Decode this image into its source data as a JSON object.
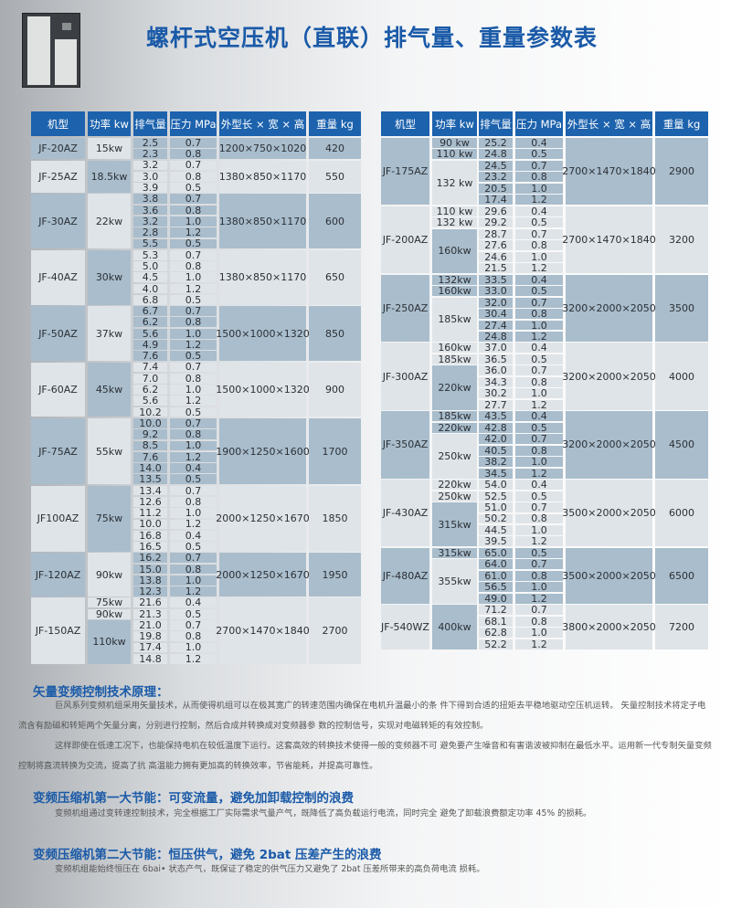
{
  "title": "螺杆式空压机（直联）排气量、重量参数表",
  "headers": [
    "机型",
    "功率 kw",
    "排气量",
    "压力 MPa",
    "外型长 × 宽 × 高",
    "重量 kg"
  ],
  "tables": [
    [
      {
        "model": "JF-20AZ",
        "dims": "1200×750×1020",
        "weight": "420",
        "powers": [
          [
            "15kw",
            2
          ]
        ],
        "rows": [
          [
            "2.5",
            "0.7"
          ],
          [
            "2.3",
            "0.8"
          ]
        ]
      },
      {
        "model": "JF-25AZ",
        "dims": "1380×850×1170",
        "weight": "550",
        "powers": [
          [
            "18.5kw",
            3
          ]
        ],
        "rows": [
          [
            "3.2",
            "0.7"
          ],
          [
            "3.0",
            "0.8"
          ],
          [
            "3.9",
            "0.5"
          ]
        ]
      },
      {
        "model": "JF-30AZ",
        "dims": "1380×850×1170",
        "weight": "600",
        "powers": [
          [
            "22kw",
            5
          ]
        ],
        "rows": [
          [
            "3.8",
            "0.7"
          ],
          [
            "3.6",
            "0.8"
          ],
          [
            "3.2",
            "1.0"
          ],
          [
            "2.8",
            "1.2"
          ],
          [
            "5.5",
            "0.5"
          ]
        ]
      },
      {
        "model": "JF-40AZ",
        "dims": "1380×850×1170",
        "weight": "650",
        "powers": [
          [
            "30kw",
            5
          ]
        ],
        "rows": [
          [
            "5.3",
            "0.7"
          ],
          [
            "5.0",
            "0.8"
          ],
          [
            "4.5",
            "1.0"
          ],
          [
            "4.0",
            "1.2"
          ],
          [
            "6.8",
            "0.5"
          ]
        ]
      },
      {
        "model": "JF-50AZ",
        "dims": "1500×1000×1320",
        "weight": "850",
        "powers": [
          [
            "37kw",
            5
          ]
        ],
        "rows": [
          [
            "6.7",
            "0.7"
          ],
          [
            "6.2",
            "0.8"
          ],
          [
            "5.6",
            "1.0"
          ],
          [
            "4.9",
            "1.2"
          ],
          [
            "7.6",
            "0.5"
          ]
        ]
      },
      {
        "model": "JF-60AZ",
        "dims": "1500×1000×1320",
        "weight": "900",
        "powers": [
          [
            "45kw",
            5
          ]
        ],
        "rows": [
          [
            "7.4",
            "0.7"
          ],
          [
            "7.0",
            "0.8"
          ],
          [
            "6.2",
            "1.0"
          ],
          [
            "5.6",
            "1.2"
          ],
          [
            "10.2",
            "0.5"
          ]
        ]
      },
      {
        "model": "JF-75AZ",
        "dims": "1900×1250×1600",
        "weight": "1700",
        "powers": [
          [
            "55kw",
            6
          ]
        ],
        "rows": [
          [
            "10.0",
            "0.7"
          ],
          [
            "9.2",
            "0.8"
          ],
          [
            "8.5",
            "1.0"
          ],
          [
            "7.6",
            "1.2"
          ],
          [
            "14.0",
            "0.4"
          ],
          [
            "13.5",
            "0.5"
          ]
        ]
      },
      {
        "model": "JF100AZ",
        "dims": "2000×1250×1670",
        "weight": "1850",
        "powers": [
          [
            "75kw",
            6
          ]
        ],
        "rows": [
          [
            "13.4",
            "0.7"
          ],
          [
            "12.6",
            "0.8"
          ],
          [
            "11.2",
            "1.0"
          ],
          [
            "10.0",
            "1.2"
          ],
          [
            "16.8",
            "0.4"
          ],
          [
            "16.5",
            "0.5"
          ]
        ]
      },
      {
        "model": "JF-120AZ",
        "dims": "2000×1250×1670",
        "weight": "1950",
        "powers": [
          [
            "90kw",
            4
          ]
        ],
        "rows": [
          [
            "16.2",
            "0.7"
          ],
          [
            "15.0",
            "0.8"
          ],
          [
            "13.8",
            "1.0"
          ],
          [
            "12.3",
            "1.2"
          ]
        ]
      },
      {
        "model": "JF-150AZ",
        "dims": "2700×1470×1840",
        "weight": "2700",
        "powers": [
          [
            "75kw",
            1
          ],
          [
            "90kw",
            1
          ],
          [
            "110kw",
            4
          ]
        ],
        "rows": [
          [
            "21.6",
            "0.4"
          ],
          [
            "21.3",
            "0.5"
          ],
          [
            "21.0",
            "0.7"
          ],
          [
            "19.8",
            "0.8"
          ],
          [
            "17.4",
            "1.0"
          ],
          [
            "14.8",
            "1.2"
          ]
        ]
      }
    ],
    [
      {
        "model": "JF-175AZ",
        "dims": "2700×1470×1840",
        "weight": "2900",
        "powers": [
          [
            "90 kw",
            1
          ],
          [
            "110 kw",
            1
          ],
          [
            "132 kw",
            4
          ]
        ],
        "rows": [
          [
            "25.2",
            "0.4"
          ],
          [
            "24.8",
            "0.5"
          ],
          [
            "24.5",
            "0.7"
          ],
          [
            "23.2",
            "0.8"
          ],
          [
            "20.5",
            "1.0"
          ],
          [
            "17.4",
            "1.2"
          ]
        ]
      },
      {
        "model": "JF-200AZ",
        "dims": "2700×1470×1840",
        "weight": "3200",
        "powers": [
          [
            "110 kw",
            1
          ],
          [
            "132 kw",
            1
          ],
          [
            "160kw",
            4
          ]
        ],
        "rows": [
          [
            "29.6",
            "0.4"
          ],
          [
            "29.2",
            "0.5"
          ],
          [
            "28.7",
            "0.7"
          ],
          [
            "27.6",
            "0.8"
          ],
          [
            "24.6",
            "1.0"
          ],
          [
            "21.5",
            "1.2"
          ]
        ]
      },
      {
        "model": "JF-250AZ",
        "dims": "3200×2000×2050",
        "weight": "3500",
        "powers": [
          [
            "132kw",
            1
          ],
          [
            "160kw",
            1
          ],
          [
            "185kw",
            4
          ]
        ],
        "rows": [
          [
            "33.5",
            "0.4"
          ],
          [
            "33.0",
            "0.5"
          ],
          [
            "32.0",
            "0.7"
          ],
          [
            "30.4",
            "0.8"
          ],
          [
            "27.4",
            "1.0"
          ],
          [
            "24.8",
            "1.2"
          ]
        ]
      },
      {
        "model": "JF-300AZ",
        "dims": "3200×2000×2050",
        "weight": "4000",
        "powers": [
          [
            "160kw",
            1
          ],
          [
            "185kw",
            1
          ],
          [
            "220kw",
            4
          ]
        ],
        "rows": [
          [
            "37.0",
            "0.4"
          ],
          [
            "36.5",
            "0.5"
          ],
          [
            "36.0",
            "0.7"
          ],
          [
            "34.3",
            "0.8"
          ],
          [
            "30.2",
            "1.0"
          ],
          [
            "27.7",
            "1.2"
          ]
        ]
      },
      {
        "model": "JF-350AZ",
        "dims": "3200×2000×2050",
        "weight": "4500",
        "powers": [
          [
            "185kw",
            1
          ],
          [
            "220kw",
            1
          ],
          [
            "250kw",
            4
          ]
        ],
        "rows": [
          [
            "43.5",
            "0.4"
          ],
          [
            "42.8",
            "0.5"
          ],
          [
            "42.0",
            "0.7"
          ],
          [
            "40.5",
            "0.8"
          ],
          [
            "38.2",
            "1.0"
          ],
          [
            "34.5",
            "1.2"
          ]
        ]
      },
      {
        "model": "JF-430AZ",
        "dims": "3500×2000×2050",
        "weight": "6000",
        "powers": [
          [
            "220kw",
            1
          ],
          [
            "250kw",
            1
          ],
          [
            "315kw",
            4
          ]
        ],
        "rows": [
          [
            "54.0",
            "0.4"
          ],
          [
            "52.5",
            "0.5"
          ],
          [
            "51.0",
            "0.7"
          ],
          [
            "50.2",
            "0.8"
          ],
          [
            "44.5",
            "1.0"
          ],
          [
            "39.5",
            "1.2"
          ]
        ]
      },
      {
        "model": "JF-480AZ",
        "dims": "3500×2000×2050",
        "weight": "6500",
        "powers": [
          [
            "315kw",
            1
          ],
          [
            "355kw",
            4
          ]
        ],
        "rows": [
          [
            "65.0",
            "0.5"
          ],
          [
            "64.0",
            "0.7"
          ],
          [
            "61.0",
            "0.8"
          ],
          [
            "56.5",
            "1.0"
          ],
          [
            "49.0",
            "1.2"
          ]
        ]
      },
      {
        "model": "JF-540WZ",
        "dims": "3800×2000×2050",
        "weight": "7200",
        "powers": [
          [
            "400kw",
            4
          ]
        ],
        "rows": [
          [
            "71.2",
            "0.7"
          ],
          [
            "68.1",
            "0.8"
          ],
          [
            "62.8",
            "1.0"
          ],
          [
            "52.2",
            "1.2"
          ]
        ]
      }
    ]
  ],
  "sections": [
    {
      "heading": "矢量变频控制技术原理：",
      "paras": [
        "巨风系列变频机组采用矢量技术，从而使得机组可以在极其宽广的转速范围内确保在电机升温最小的条 件下得到合适的扭矩去平稳地驱动空压机运转。 矢量控制技术将定子电流含有励磁和转矩两个矢量分离，分别进行控制，然后合成并转换成对变频器参 数的控制信号，实现对电磁转矩的有效控制。",
        "这样即使在低速工况下，也能保持电机在较低温度下运行。这套高效的转换技术使得一般的变频器不可 避免要产生噪音和有害谐波被抑制在最低水平。运用新一代专制矢量变频控制将直流转换为交流，提高了抗 高温能力拥有更加高的转换效率，节省能耗，并提高可靠性。"
      ]
    },
    {
      "heading": "变频压缩机第一大节能：可变流量，避免加卸载控制的浪费",
      "paras": [
        "变频机组通过变转速控制技术，完全根据工厂实际需求气量产气，既降低了高负载运行电流，同时完全 避免了卸载浪费额定功率 45% 的损耗。"
      ]
    },
    {
      "heading": "变频压缩机第二大节能：恒压供气，避免 2bat 压差产生的浪费",
      "paras": [
        "变频机组能始终恒压在 6bai• 状态产气，既保证了稳定的供气压力又避免了 2bat 压差所带来的高负荷电流 损耗。"
      ]
    }
  ],
  "colors": {
    "header": "#1c62ad",
    "title": "#1a5aa8",
    "band_dark": "#a9bdcc",
    "band_light": "#dfe4e8"
  }
}
